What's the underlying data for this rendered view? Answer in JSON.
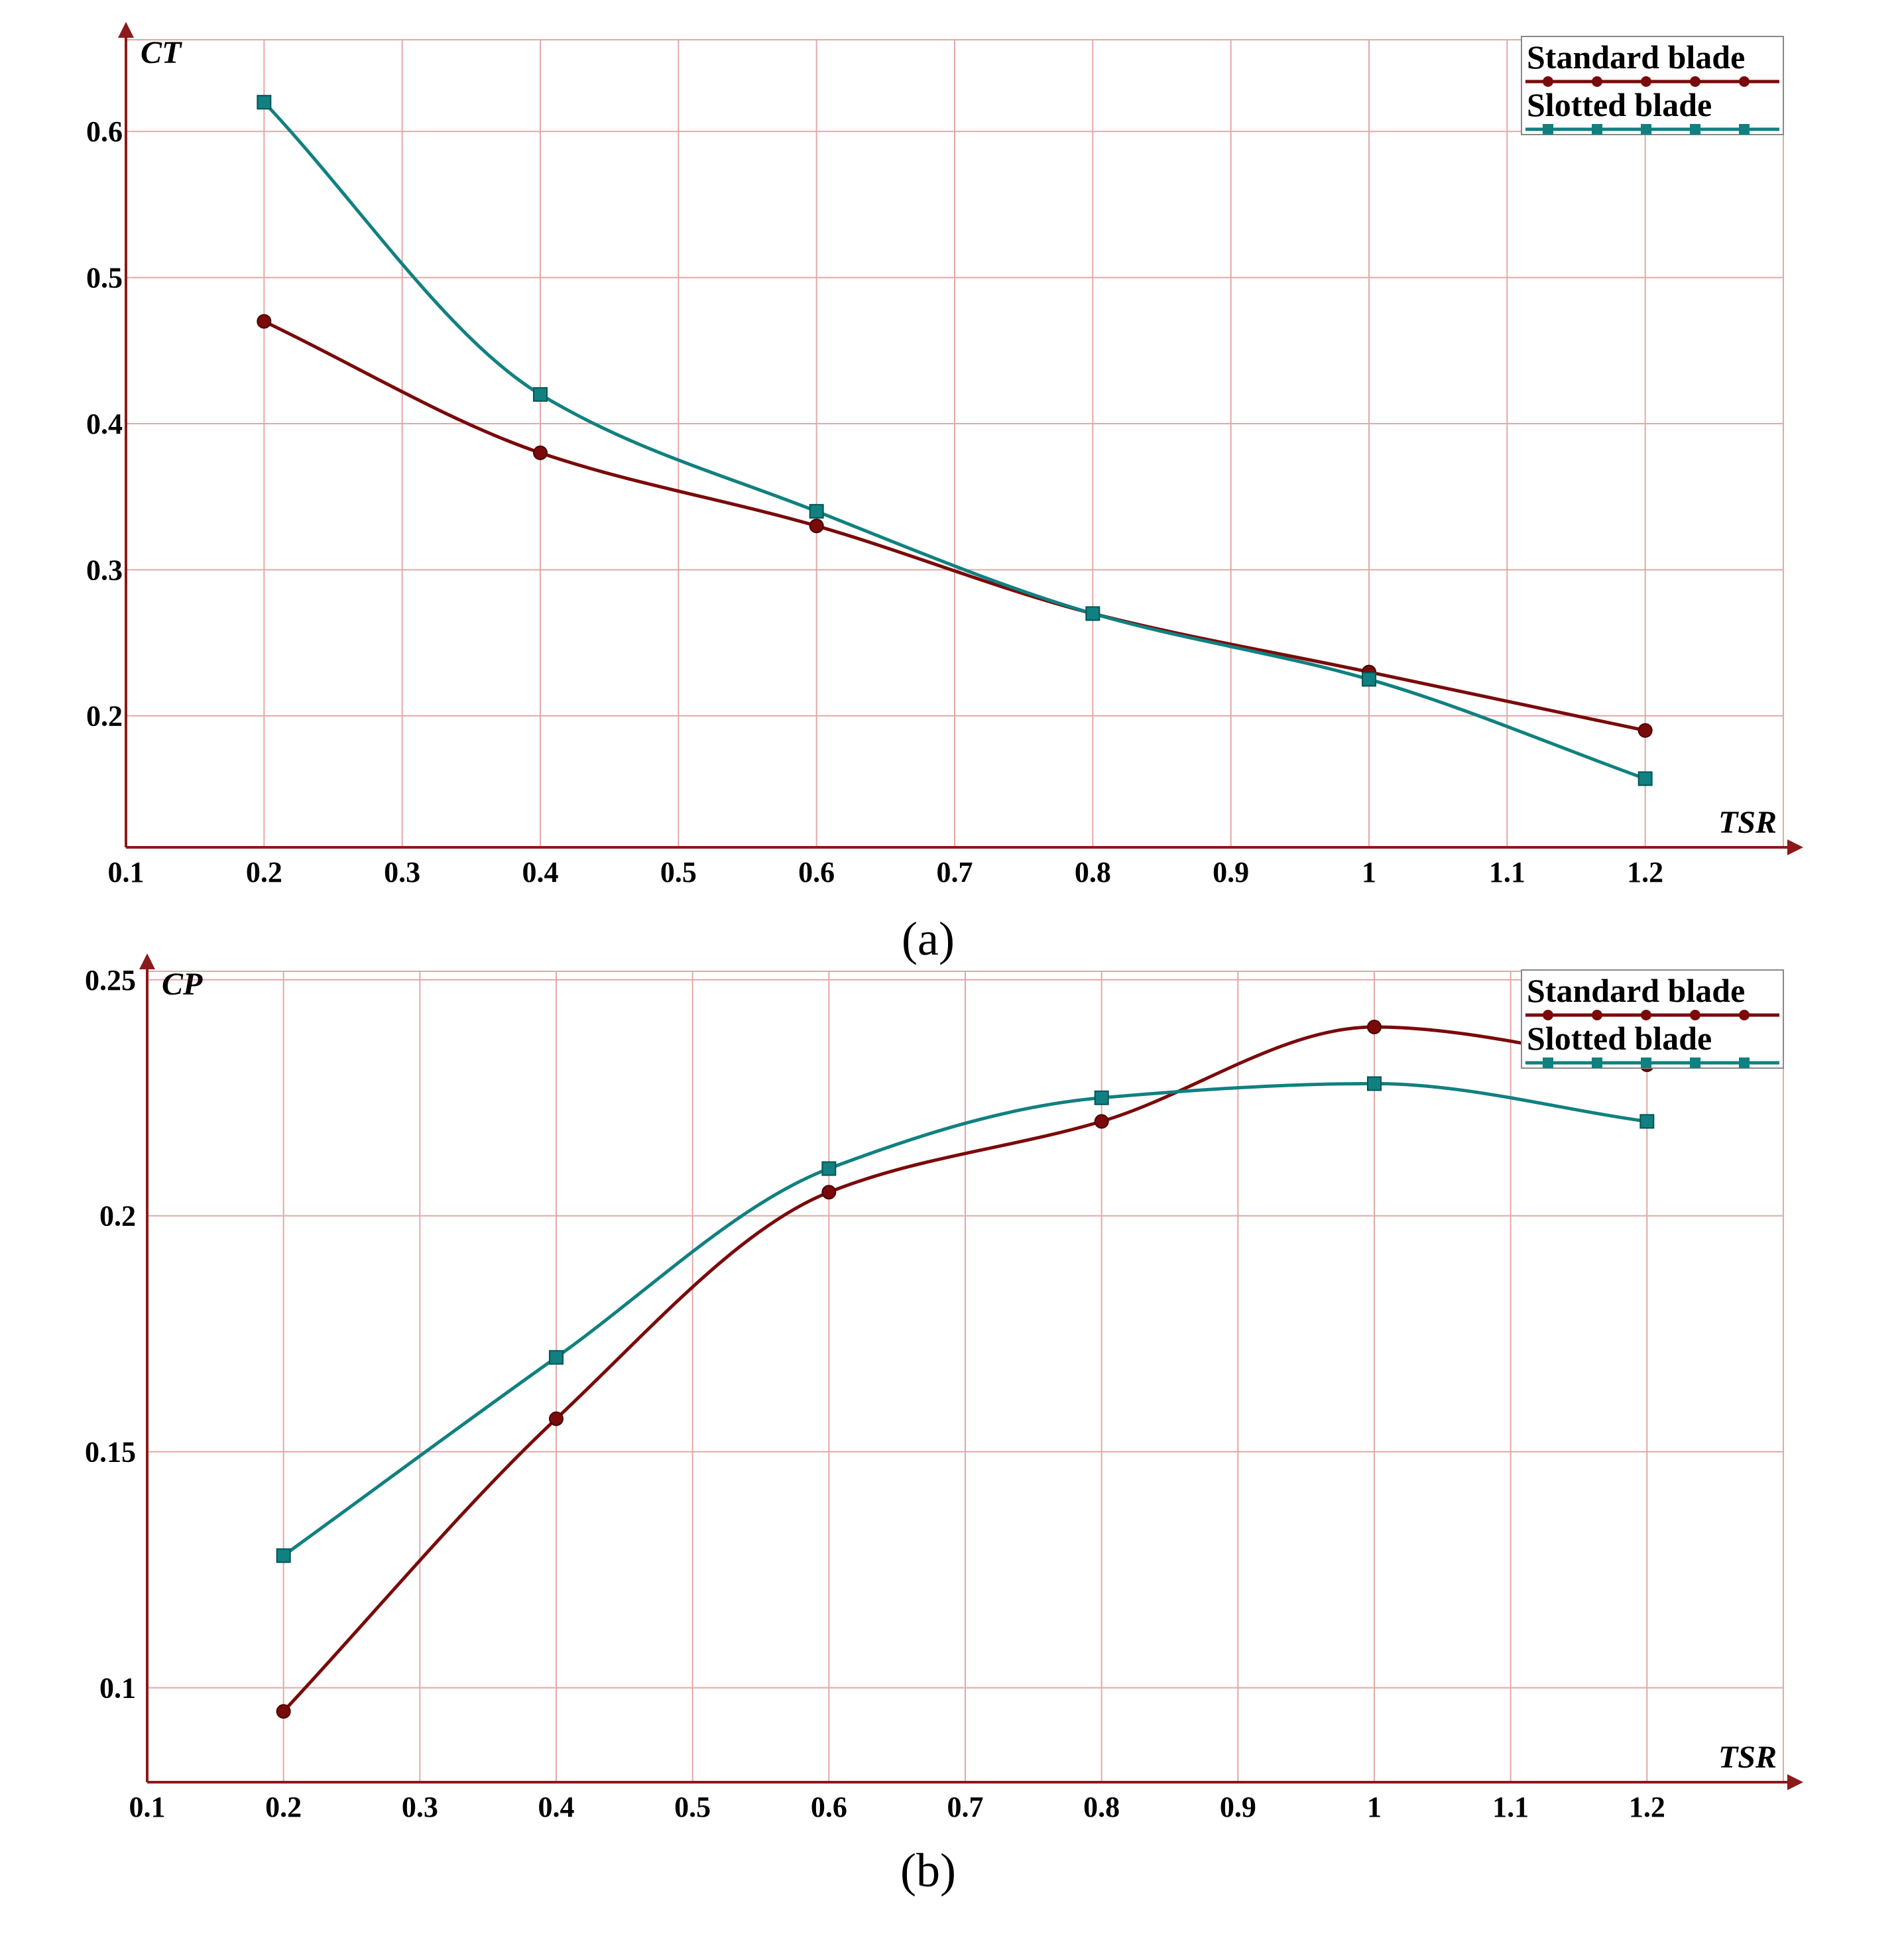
{
  "colors": {
    "standard": "#7a0a0a",
    "slotted": "#118080",
    "grid": "#e2a8a8",
    "axis": "#8b1a1a"
  },
  "chart_data": [
    {
      "type": "line",
      "caption": "(a)",
      "ylabel": "CT",
      "xlabel": "TSR",
      "x_ticks": [
        "0.1",
        "0.2",
        "0.3",
        "0.4",
        "0.5",
        "0.6",
        "0.7",
        "0.8",
        "0.9",
        "1",
        "1.1",
        "1.2"
      ],
      "y_ticks": [
        "0.2",
        "0.3",
        "0.4",
        "0.5",
        "0.6"
      ],
      "xlim": [
        0.1,
        1.3
      ],
      "ylim": [
        0.11,
        0.665
      ],
      "grid": true,
      "legend_position": "top-right",
      "series": [
        {
          "name": "Standard blade",
          "marker": "circle",
          "x": [
            0.2,
            0.4,
            0.6,
            0.8,
            1.0,
            1.2
          ],
          "y": [
            0.47,
            0.38,
            0.33,
            0.27,
            0.23,
            0.19
          ]
        },
        {
          "name": "Slotted blade",
          "marker": "square",
          "x": [
            0.2,
            0.4,
            0.6,
            0.8,
            1.0,
            1.2
          ],
          "y": [
            0.62,
            0.42,
            0.34,
            0.27,
            0.225,
            0.157
          ]
        }
      ]
    },
    {
      "type": "line",
      "caption": "(b)",
      "ylabel": "CP",
      "xlabel": "TSR",
      "x_ticks": [
        "0.1",
        "0.2",
        "0.3",
        "0.4",
        "0.5",
        "0.6",
        "0.7",
        "0.8",
        "0.9",
        "1",
        "1.1",
        "1.2"
      ],
      "y_ticks": [
        "0.1",
        "0.15",
        "0.2",
        "0.25"
      ],
      "xlim": [
        0.1,
        1.3
      ],
      "ylim": [
        0.08,
        0.2525
      ],
      "grid": true,
      "legend_position": "top-right",
      "series": [
        {
          "name": "Standard blade",
          "marker": "circle",
          "x": [
            0.2,
            0.4,
            0.6,
            0.8,
            1.0,
            1.2
          ],
          "y": [
            0.095,
            0.157,
            0.205,
            0.22,
            0.24,
            0.232
          ]
        },
        {
          "name": "Slotted blade",
          "marker": "square",
          "x": [
            0.2,
            0.4,
            0.6,
            0.8,
            1.0,
            1.2
          ],
          "y": [
            0.128,
            0.17,
            0.21,
            0.225,
            0.228,
            0.22
          ]
        }
      ]
    }
  ]
}
